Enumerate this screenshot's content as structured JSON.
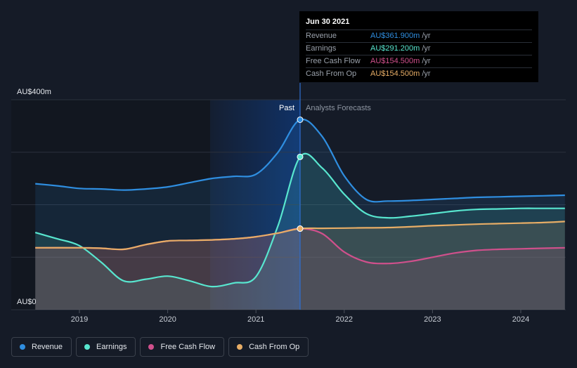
{
  "colors": {
    "background": "#151b27",
    "revenue": "#2f8ee0",
    "earnings": "#58e6cf",
    "free_cash_flow": "#d0508c",
    "cash_from_op": "#e7ad66",
    "past_highlight": "#10336a"
  },
  "chart_data": {
    "type": "line",
    "title": "",
    "y_axis": {
      "top_label": "AU$400m",
      "bottom_label": "AU$0",
      "ylim": [
        0,
        400
      ],
      "grid": true
    },
    "x_axis": {
      "ticks": [
        "2019",
        "2020",
        "2021",
        "2022",
        "2023",
        "2024"
      ],
      "xlim": [
        2018.5,
        2024.5
      ]
    },
    "divider_x": 2021.5,
    "past_label": "Past",
    "forecast_label": "Analysts Forecasts",
    "series": [
      {
        "name": "Revenue",
        "color_key": "revenue",
        "points": [
          [
            2018.5,
            240
          ],
          [
            2018.75,
            236
          ],
          [
            2019.0,
            231
          ],
          [
            2019.25,
            230
          ],
          [
            2019.5,
            228
          ],
          [
            2019.75,
            230
          ],
          [
            2020.0,
            234
          ],
          [
            2020.25,
            242
          ],
          [
            2020.5,
            250
          ],
          [
            2020.75,
            254
          ],
          [
            2021.0,
            258
          ],
          [
            2021.25,
            300
          ],
          [
            2021.5,
            361.9
          ],
          [
            2021.75,
            330
          ],
          [
            2022.0,
            255
          ],
          [
            2022.25,
            210
          ],
          [
            2022.5,
            207
          ],
          [
            2022.75,
            208
          ],
          [
            2023.0,
            210
          ],
          [
            2023.25,
            212
          ],
          [
            2023.5,
            214
          ],
          [
            2023.75,
            215
          ],
          [
            2024.0,
            216
          ],
          [
            2024.25,
            217
          ],
          [
            2024.5,
            218
          ]
        ]
      },
      {
        "name": "Earnings",
        "color_key": "earnings",
        "points": [
          [
            2018.5,
            147
          ],
          [
            2018.75,
            135
          ],
          [
            2019.0,
            122
          ],
          [
            2019.25,
            90
          ],
          [
            2019.5,
            55
          ],
          [
            2019.75,
            58
          ],
          [
            2020.0,
            64
          ],
          [
            2020.25,
            55
          ],
          [
            2020.5,
            44
          ],
          [
            2020.75,
            51
          ],
          [
            2021.0,
            63
          ],
          [
            2021.25,
            160
          ],
          [
            2021.5,
            291.2
          ],
          [
            2021.75,
            270
          ],
          [
            2022.0,
            220
          ],
          [
            2022.25,
            183
          ],
          [
            2022.5,
            175
          ],
          [
            2022.75,
            178
          ],
          [
            2023.0,
            183
          ],
          [
            2023.25,
            188
          ],
          [
            2023.5,
            191
          ],
          [
            2023.75,
            192
          ],
          [
            2024.0,
            193
          ],
          [
            2024.25,
            193
          ],
          [
            2024.5,
            193
          ]
        ]
      },
      {
        "name": "Free Cash Flow",
        "color_key": "free_cash_flow",
        "points": [
          [
            2018.5,
            118
          ],
          [
            2019.0,
            118
          ],
          [
            2019.25,
            117
          ],
          [
            2019.5,
            115
          ],
          [
            2019.75,
            124
          ],
          [
            2020.0,
            131
          ],
          [
            2020.25,
            132
          ],
          [
            2020.5,
            133
          ],
          [
            2020.75,
            135
          ],
          [
            2021.0,
            139
          ],
          [
            2021.25,
            146
          ],
          [
            2021.5,
            154.5
          ],
          [
            2021.75,
            145
          ],
          [
            2022.0,
            110
          ],
          [
            2022.25,
            91
          ],
          [
            2022.5,
            88
          ],
          [
            2022.75,
            92
          ],
          [
            2023.0,
            100
          ],
          [
            2023.25,
            108
          ],
          [
            2023.5,
            113
          ],
          [
            2023.75,
            115
          ],
          [
            2024.0,
            116
          ],
          [
            2024.25,
            117
          ],
          [
            2024.5,
            118
          ]
        ]
      },
      {
        "name": "Cash From Op",
        "color_key": "cash_from_op",
        "points": [
          [
            2018.5,
            118
          ],
          [
            2019.0,
            118
          ],
          [
            2019.25,
            117
          ],
          [
            2019.5,
            115
          ],
          [
            2019.75,
            124
          ],
          [
            2020.0,
            131
          ],
          [
            2020.25,
            132
          ],
          [
            2020.5,
            133
          ],
          [
            2020.75,
            135
          ],
          [
            2021.0,
            139
          ],
          [
            2021.25,
            146
          ],
          [
            2021.5,
            154.5
          ],
          [
            2021.75,
            155
          ],
          [
            2022.0,
            155.5
          ],
          [
            2022.25,
            156
          ],
          [
            2022.5,
            156.5
          ],
          [
            2022.75,
            158
          ],
          [
            2023.0,
            160
          ],
          [
            2023.25,
            161.5
          ],
          [
            2023.5,
            163
          ],
          [
            2023.75,
            164
          ],
          [
            2024.0,
            165
          ],
          [
            2024.25,
            166
          ],
          [
            2024.5,
            168
          ]
        ]
      }
    ]
  },
  "tooltip": {
    "date": "Jun 30 2021",
    "unit": "/yr",
    "rows": [
      {
        "name": "Revenue",
        "value": "AU$361.900m",
        "color_key": "revenue"
      },
      {
        "name": "Earnings",
        "value": "AU$291.200m",
        "color_key": "earnings"
      },
      {
        "name": "Free Cash Flow",
        "value": "AU$154.500m",
        "color_key": "free_cash_flow"
      },
      {
        "name": "Cash From Op",
        "value": "AU$154.500m",
        "color_key": "cash_from_op"
      }
    ]
  },
  "legend": [
    {
      "label": "Revenue",
      "color_key": "revenue"
    },
    {
      "label": "Earnings",
      "color_key": "earnings"
    },
    {
      "label": "Free Cash Flow",
      "color_key": "free_cash_flow"
    },
    {
      "label": "Cash From Op",
      "color_key": "cash_from_op"
    }
  ]
}
